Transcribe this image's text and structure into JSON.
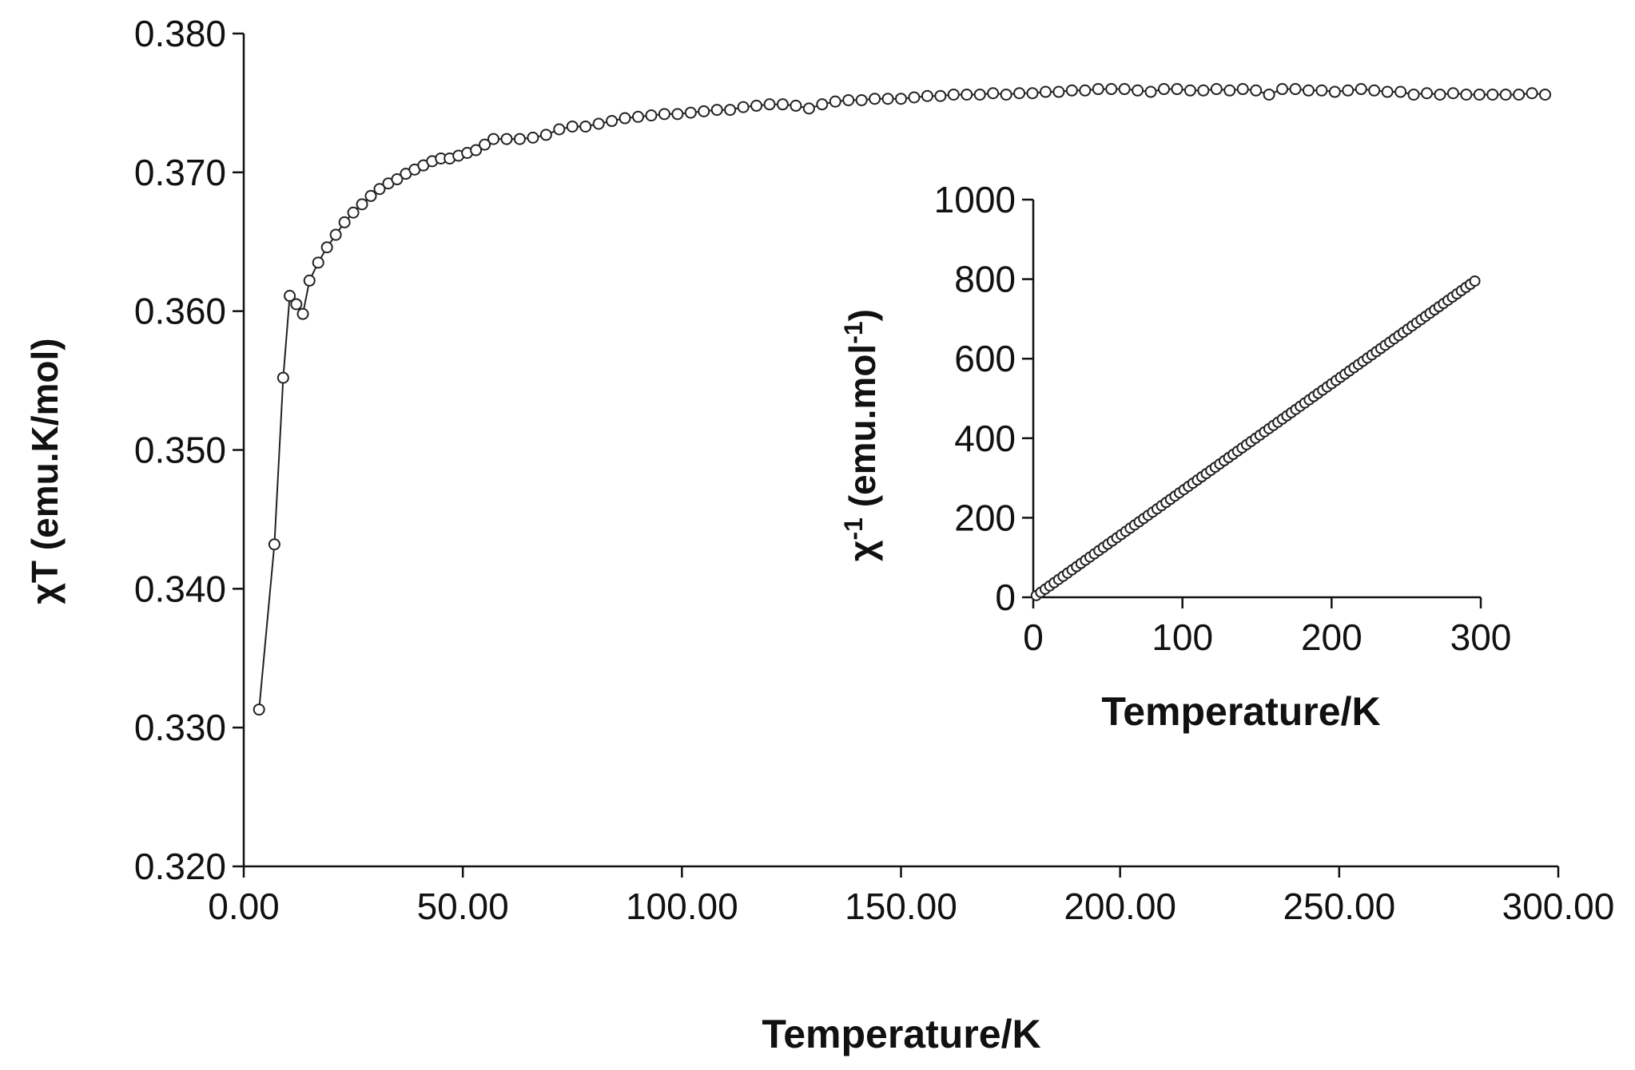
{
  "chart_data": [
    {
      "type": "line",
      "title": "",
      "xlabel": "Temperature/K",
      "ylabel": "χT (emu.K/mol)",
      "xlim": [
        0,
        300
      ],
      "ylim": [
        0.32,
        0.38
      ],
      "xticks": [
        "0.00",
        "50.00",
        "100.00",
        "150.00",
        "200.00",
        "250.00",
        "300.00"
      ],
      "yticks": [
        "0.320",
        "0.330",
        "0.340",
        "0.350",
        "0.360",
        "0.370",
        "0.380"
      ],
      "grid": false,
      "marker": "open circle",
      "line_color": "#222222",
      "series": [
        {
          "x": [
            3.5,
            7,
            9,
            10.5,
            12,
            13.5,
            15,
            17,
            19,
            21,
            23,
            25,
            27,
            29,
            31,
            33,
            35,
            37,
            39,
            41,
            43,
            45,
            47,
            49,
            51,
            53,
            55,
            57,
            60,
            63,
            66,
            69,
            72,
            75,
            78,
            81,
            84,
            87,
            90,
            93,
            96,
            99,
            102,
            105,
            108,
            111,
            114,
            117,
            120,
            123,
            126,
            129,
            132,
            135,
            138,
            141,
            144,
            147,
            150,
            153,
            156,
            159,
            162,
            165,
            168,
            171,
            174,
            177,
            180,
            183,
            186,
            189,
            192,
            195,
            198,
            201,
            204,
            207,
            210,
            213,
            216,
            219,
            222,
            225,
            228,
            231,
            234,
            237,
            240,
            243,
            246,
            249,
            252,
            255,
            258,
            261,
            264,
            267,
            270,
            273,
            276,
            279,
            282,
            285,
            288,
            291,
            294,
            297
          ],
          "values": [
            0.3313,
            0.3432,
            0.3552,
            0.3611,
            0.3605,
            0.3598,
            0.3622,
            0.3635,
            0.3646,
            0.3655,
            0.3664,
            0.3671,
            0.3677,
            0.3683,
            0.3688,
            0.3692,
            0.3695,
            0.3699,
            0.3702,
            0.3705,
            0.3708,
            0.371,
            0.371,
            0.3712,
            0.3714,
            0.3716,
            0.372,
            0.3724,
            0.3724,
            0.3724,
            0.3725,
            0.3727,
            0.3731,
            0.3733,
            0.3733,
            0.3735,
            0.3737,
            0.3739,
            0.374,
            0.3741,
            0.3742,
            0.3742,
            0.3743,
            0.3744,
            0.3745,
            0.3745,
            0.3747,
            0.3748,
            0.3749,
            0.3749,
            0.3748,
            0.3746,
            0.3749,
            0.3751,
            0.3752,
            0.3752,
            0.3753,
            0.3753,
            0.3753,
            0.3754,
            0.3755,
            0.3755,
            0.3756,
            0.3756,
            0.3756,
            0.3757,
            0.3756,
            0.3757,
            0.3757,
            0.3758,
            0.3758,
            0.3759,
            0.3759,
            0.376,
            0.376,
            0.376,
            0.3759,
            0.3758,
            0.376,
            0.376,
            0.3759,
            0.3759,
            0.376,
            0.3759,
            0.376,
            0.3759,
            0.3756,
            0.376,
            0.376,
            0.3759,
            0.3759,
            0.3758,
            0.3759,
            0.376,
            0.3759,
            0.3758,
            0.3758,
            0.3756,
            0.3757,
            0.3756,
            0.3757,
            0.3756,
            0.3756,
            0.3756,
            0.3756,
            0.3756,
            0.3757,
            0.3756
          ]
        }
      ]
    },
    {
      "type": "scatter",
      "title": "",
      "xlabel": "Temperature/K",
      "ylabel_main": "χ",
      "ylabel_sup": "-1",
      "ylabel_rest": " (emu.mol",
      "ylabel_sup2": "-1",
      "ylabel_end": ")",
      "xlim": [
        0,
        300
      ],
      "ylim": [
        0,
        1000
      ],
      "xticks": [
        "0",
        "100",
        "200",
        "300"
      ],
      "yticks": [
        "0",
        "200",
        "400",
        "600",
        "800",
        "1000"
      ],
      "grid": false,
      "marker": "open circle",
      "series": [
        {
          "x_start": 2,
          "x_end": 297,
          "x_step": 3,
          "slope": 2.69,
          "intercept": -1
        }
      ]
    }
  ]
}
